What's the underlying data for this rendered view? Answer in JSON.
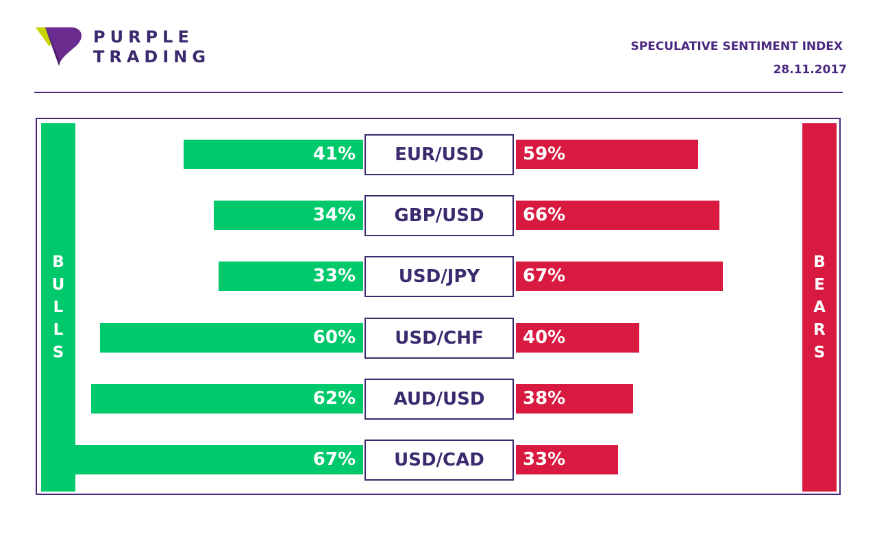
{
  "header": {
    "brand_line1": "PURPLE",
    "brand_line2": "TRADING",
    "title": "SPECULATIVE SENTIMENT INDEX",
    "date": "28.11.2017"
  },
  "labels": {
    "bulls": "BULLS",
    "bears": "BEARS"
  },
  "colors": {
    "bulls": "#00c96b",
    "bears": "#d81a41",
    "brand": "#4a2880",
    "logo_green": "#c8d400"
  },
  "chart_data": {
    "type": "bar",
    "categories": [
      "EUR/USD",
      "GBP/USD",
      "USD/JPY",
      "USD/CHF",
      "AUD/USD",
      "USD/CAD"
    ],
    "series": [
      {
        "name": "BULLS",
        "values": [
          41,
          34,
          33,
          60,
          62,
          67
        ]
      },
      {
        "name": "BEARS",
        "values": [
          59,
          66,
          67,
          40,
          38,
          33
        ]
      }
    ],
    "rows": [
      {
        "pair": "EUR/USD",
        "bulls": 41,
        "bears": 59,
        "bulls_label": "41%",
        "bears_label": "59%"
      },
      {
        "pair": "GBP/USD",
        "bulls": 34,
        "bears": 66,
        "bulls_label": "34%",
        "bears_label": "66%"
      },
      {
        "pair": "USD/JPY",
        "bulls": 33,
        "bears": 67,
        "bulls_label": "33%",
        "bears_label": "67%"
      },
      {
        "pair": "USD/CHF",
        "bulls": 60,
        "bears": 40,
        "bulls_label": "60%",
        "bears_label": "40%"
      },
      {
        "pair": "AUD/USD",
        "bulls": 62,
        "bears": 38,
        "bulls_label": "62%",
        "bears_label": "38%"
      },
      {
        "pair": "USD/CAD",
        "bulls": 67,
        "bears": 33,
        "bulls_label": "67%",
        "bears_label": "33%"
      }
    ]
  }
}
